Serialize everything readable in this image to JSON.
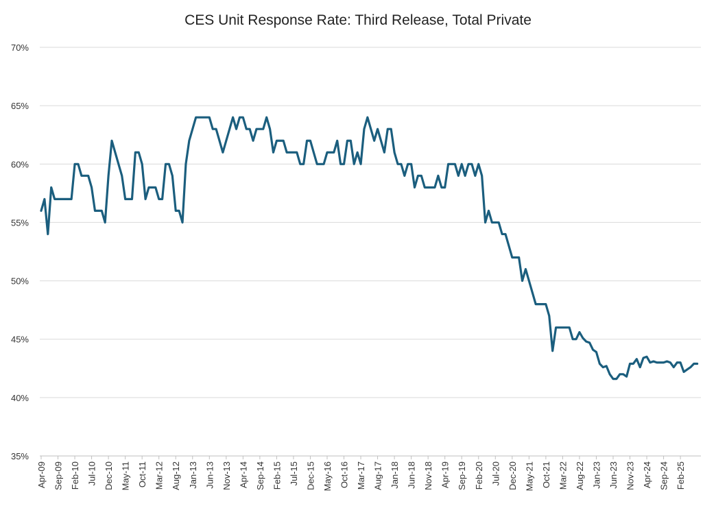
{
  "chart_data": {
    "type": "line",
    "title": "CES Unit Response Rate: Third Release, Total Private",
    "xlabel": "",
    "ylabel": "",
    "ylim": [
      35,
      70
    ],
    "y_ticks": [
      "35%",
      "40%",
      "45%",
      "50%",
      "55%",
      "60%",
      "65%",
      "70%"
    ],
    "x_start": "Apr-09",
    "x_tick_labels": [
      "Apr-09",
      "Sep-09",
      "Feb-10",
      "Jul-10",
      "Dec-10",
      "May-11",
      "Oct-11",
      "Mar-12",
      "Aug-12",
      "Jan-13",
      "Jun-13",
      "Nov-13",
      "Apr-14",
      "Sep-14",
      "Feb-15",
      "Jul-15",
      "Dec-15",
      "May-16",
      "Oct-16",
      "Mar-17",
      "Aug-17",
      "Jan-18",
      "Jun-18",
      "Nov-18",
      "Apr-19",
      "Sep-19",
      "Feb-20",
      "Jul-20",
      "Dec-20",
      "May-21",
      "Oct-21",
      "Mar-22",
      "Aug-22",
      "Jan-23",
      "Jun-23",
      "Nov-23",
      "Apr-24",
      "Sep-24",
      "Feb-25"
    ],
    "grid": true,
    "legend": "none",
    "line_color": "#1b5e7e",
    "series": [
      {
        "values": [
          56,
          57,
          54,
          58,
          57,
          57,
          57,
          57,
          57,
          57,
          60,
          60,
          59,
          59,
          59,
          58,
          56,
          56,
          56,
          55,
          59,
          62,
          61,
          60,
          59,
          57,
          57,
          57,
          61,
          61,
          60,
          57,
          58,
          58,
          58,
          57,
          57,
          60,
          60,
          59,
          56,
          56,
          55,
          60,
          62,
          63,
          64,
          64,
          64,
          64,
          64,
          63,
          63,
          62,
          61,
          62,
          63,
          64,
          63,
          64,
          64,
          63,
          63,
          62,
          63,
          63,
          63,
          64,
          63,
          61,
          62,
          62,
          62,
          61,
          61,
          61,
          61,
          60,
          60,
          62,
          62,
          61,
          60,
          60,
          60,
          61,
          61,
          61,
          62,
          60,
          60,
          62,
          62,
          60,
          61,
          60,
          63,
          64,
          63,
          62,
          63,
          62,
          61,
          63,
          63,
          61,
          60,
          60,
          59,
          60,
          60,
          58,
          59,
          59,
          58,
          58,
          58,
          58,
          59,
          58,
          58,
          60,
          60,
          60,
          59,
          60,
          59,
          60,
          60,
          59,
          60,
          59,
          55,
          56,
          55,
          55,
          55,
          54,
          54,
          53,
          52,
          52,
          52,
          50,
          51,
          50,
          49,
          48,
          48,
          48,
          48,
          47,
          44,
          46,
          46,
          46,
          46,
          46,
          45,
          45,
          45.6,
          45.1,
          44.8,
          44.7,
          44.1,
          43.9,
          42.9,
          42.6,
          42.7,
          42,
          41.6,
          41.6,
          42,
          42,
          41.8,
          42.9,
          42.9,
          43.3,
          42.6,
          43.4,
          43.5,
          43,
          43.1,
          43,
          43,
          43,
          43.1,
          43,
          42.6,
          43,
          43,
          42.2,
          42.4,
          42.6,
          42.9,
          42.9
        ]
      }
    ]
  }
}
